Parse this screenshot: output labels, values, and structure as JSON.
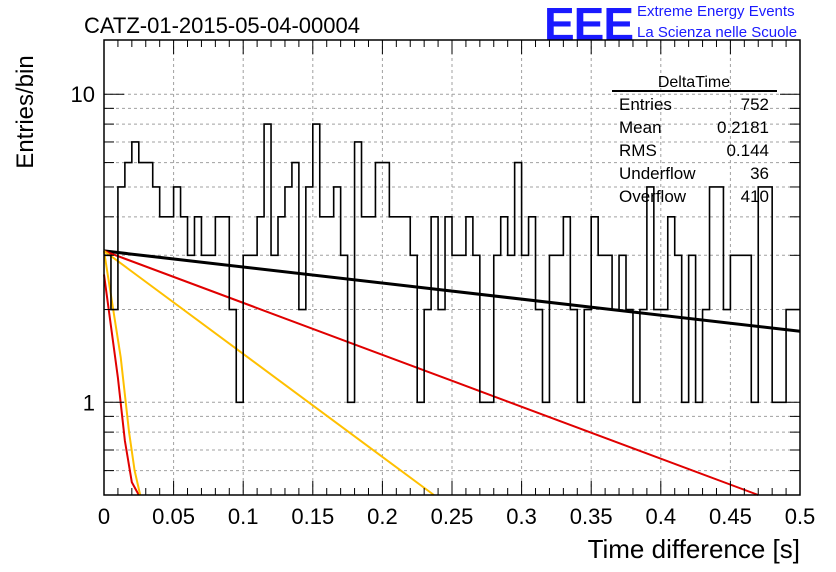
{
  "header": {
    "run_title": "CATZ-01-2015-05-04-00004",
    "logo_text": "EEE",
    "logo_line1": "Extreme Energy Events",
    "logo_line2": "La Scienza nelle Scuole"
  },
  "stats_box": {
    "title": "DeltaTime",
    "rows": [
      {
        "label": "Entries",
        "value": "752"
      },
      {
        "label": "Mean",
        "value": "0.2181"
      },
      {
        "label": "RMS",
        "value": "0.144"
      },
      {
        "label": "Underflow",
        "value": "36"
      },
      {
        "label": "Overflow",
        "value": "410"
      }
    ]
  },
  "colors": {
    "histogram": "#000000",
    "black_fit": "#000000",
    "red_fit": "#e00000",
    "orange_fit": "#ffc000",
    "grid": "#a0a0a0",
    "logo": "#1a1aff"
  },
  "chart_data": {
    "type": "line",
    "title": "CATZ-01-2015-05-04-00004",
    "xlabel": "Time difference [s]",
    "ylabel": "Entries/bin",
    "xlim": [
      0,
      0.5
    ],
    "ylim": [
      0.5,
      15
    ],
    "y_scale": "log",
    "grid": true,
    "legend": "top-right",
    "x_ticks": [
      "0",
      "0.05",
      "0.1",
      "0.15",
      "0.2",
      "0.25",
      "0.3",
      "0.35",
      "0.4",
      "0.45",
      "0.5"
    ],
    "y_ticks": [
      "1",
      "10"
    ],
    "histogram": {
      "name": "DeltaTime",
      "bin_width": 0.005,
      "values": [
        3,
        2,
        5,
        6,
        7,
        6,
        6,
        5,
        4,
        4,
        5,
        4,
        3,
        4,
        3,
        3,
        4,
        4,
        2,
        1,
        3,
        3,
        4,
        8,
        3,
        4,
        5,
        6,
        2,
        5,
        8,
        4,
        4,
        5,
        3,
        1,
        7,
        4,
        4,
        6,
        6,
        4,
        4,
        4,
        3,
        1,
        2,
        4,
        2,
        4,
        3,
        3,
        4,
        3,
        1,
        1,
        3,
        4,
        3,
        6,
        3,
        4,
        2,
        1,
        3,
        3,
        4,
        2,
        1,
        2,
        4,
        3,
        3,
        2,
        3,
        2,
        1,
        2,
        5,
        2,
        2,
        4,
        3,
        1,
        3,
        1,
        2,
        5,
        5,
        2,
        3,
        3,
        3,
        1,
        5,
        5,
        1,
        1,
        2,
        2
      ]
    },
    "series": [
      {
        "color": "black",
        "x": [
          0,
          0.5
        ],
        "y": [
          3.1,
          1.7
        ]
      },
      {
        "color": "red",
        "x": [
          0,
          0.47
        ],
        "y": [
          3.1,
          0.5
        ]
      },
      {
        "color": "red",
        "x": [
          0.0,
          0.01,
          0.015,
          0.02,
          0.025
        ],
        "y": [
          2.6,
          1.2,
          0.75,
          0.55,
          0.5
        ]
      },
      {
        "color": "orange",
        "x": [
          0,
          0.237
        ],
        "y": [
          3.1,
          0.5
        ]
      },
      {
        "color": "orange",
        "x": [
          0.0,
          0.012,
          0.018,
          0.022,
          0.026
        ],
        "y": [
          3.1,
          1.4,
          0.8,
          0.6,
          0.5
        ]
      }
    ]
  }
}
